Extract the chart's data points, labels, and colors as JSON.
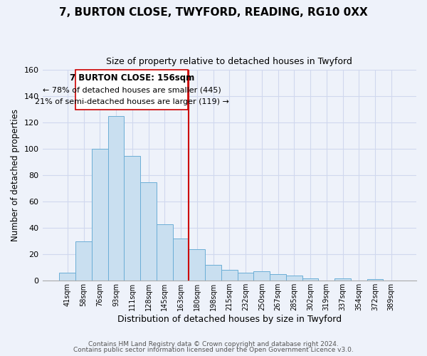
{
  "title": "7, BURTON CLOSE, TWYFORD, READING, RG10 0XX",
  "subtitle": "Size of property relative to detached houses in Twyford",
  "xlabel": "Distribution of detached houses by size in Twyford",
  "ylabel": "Number of detached properties",
  "bar_color": "#c9dff0",
  "bar_edge_color": "#6baed6",
  "background_color": "#eef2fa",
  "grid_color": "#d0d8ee",
  "bin_labels": [
    "41sqm",
    "58sqm",
    "76sqm",
    "93sqm",
    "111sqm",
    "128sqm",
    "145sqm",
    "163sqm",
    "180sqm",
    "198sqm",
    "215sqm",
    "232sqm",
    "250sqm",
    "267sqm",
    "285sqm",
    "302sqm",
    "319sqm",
    "337sqm",
    "354sqm",
    "372sqm",
    "389sqm"
  ],
  "bar_heights": [
    6,
    30,
    100,
    125,
    95,
    75,
    43,
    32,
    24,
    12,
    8,
    6,
    7,
    5,
    4,
    2,
    0,
    2,
    0,
    1,
    0
  ],
  "vline_x": 7.5,
  "vline_color": "#cc0000",
  "ylim": [
    0,
    160
  ],
  "yticks": [
    0,
    20,
    40,
    60,
    80,
    100,
    120,
    140,
    160
  ],
  "annotation_title": "7 BURTON CLOSE: 156sqm",
  "annotation_line1": "← 78% of detached houses are smaller (445)",
  "annotation_line2": "21% of semi-detached houses are larger (119) →",
  "footer1": "Contains HM Land Registry data © Crown copyright and database right 2024.",
  "footer2": "Contains public sector information licensed under the Open Government Licence v3.0."
}
